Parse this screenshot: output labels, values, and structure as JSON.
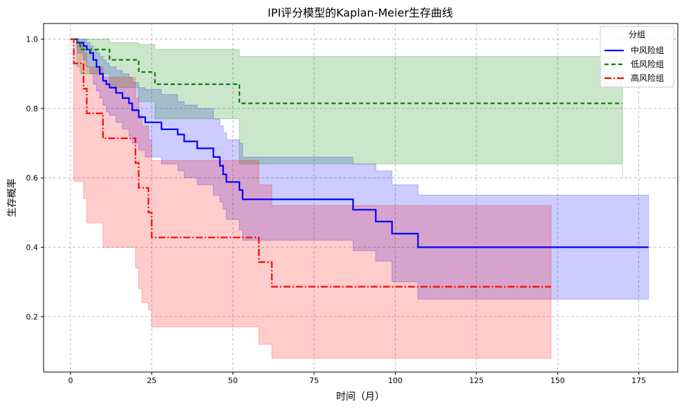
{
  "chart_data": {
    "type": "line",
    "title": "IPI评分模型的Kaplan-Meier生存曲线",
    "xlabel": "时间（月）",
    "ylabel": "生存概率",
    "xlim": [
      -8.3,
      187
    ],
    "ylim": [
      0.04,
      1.045
    ],
    "xticks": [
      0,
      25,
      50,
      75,
      100,
      125,
      150,
      175
    ],
    "yticks": [
      0.2,
      0.4,
      0.6,
      0.8,
      1.0
    ],
    "ytick_labels": [
      "0.2",
      "0.4",
      "0.6",
      "0.8",
      "1.0"
    ],
    "grid": true,
    "legend": {
      "title": "分组",
      "position": "top-right"
    },
    "series": [
      {
        "name": "中风险组",
        "color": "#0000ff",
        "dash": "solid",
        "x": [
          0,
          2,
          4,
          5,
          6,
          7,
          8,
          9,
          10,
          11,
          12,
          14,
          16,
          18,
          19,
          21,
          23,
          28,
          33,
          35,
          39,
          44,
          46,
          47,
          48,
          52,
          53,
          87,
          94,
          99,
          107,
          178
        ],
        "y": [
          1.0,
          0.99,
          0.98,
          0.97,
          0.96,
          0.94,
          0.92,
          0.9,
          0.88,
          0.87,
          0.86,
          0.845,
          0.83,
          0.815,
          0.795,
          0.775,
          0.76,
          0.74,
          0.725,
          0.705,
          0.685,
          0.66,
          0.635,
          0.61,
          0.588,
          0.565,
          0.538,
          0.508,
          0.474,
          0.439,
          0.4,
          0.4
        ],
        "ci_upper": [
          1.0,
          1.0,
          1.0,
          0.99,
          0.98,
          0.97,
          0.96,
          0.95,
          0.94,
          0.93,
          0.92,
          0.91,
          0.9,
          0.89,
          0.875,
          0.86,
          0.855,
          0.84,
          0.82,
          0.81,
          0.8,
          0.77,
          0.75,
          0.73,
          0.71,
          0.7,
          0.66,
          0.64,
          0.62,
          0.58,
          0.55,
          0.55
        ],
        "ci_lower": [
          1.0,
          0.96,
          0.94,
          0.92,
          0.9,
          0.87,
          0.85,
          0.83,
          0.81,
          0.79,
          0.78,
          0.76,
          0.74,
          0.72,
          0.7,
          0.68,
          0.66,
          0.64,
          0.62,
          0.6,
          0.58,
          0.55,
          0.53,
          0.51,
          0.48,
          0.45,
          0.42,
          0.39,
          0.36,
          0.3,
          0.25,
          0.25
        ]
      },
      {
        "name": "低风险组",
        "color": "#008000",
        "dash": "6,4",
        "x": [
          0,
          2,
          3,
          12,
          21,
          26,
          52,
          170
        ],
        "y": [
          1.0,
          0.985,
          0.97,
          0.94,
          0.905,
          0.87,
          0.815,
          0.815
        ],
        "ci_upper": [
          1.0,
          1.0,
          1.0,
          0.99,
          0.985,
          0.97,
          0.95,
          0.92
        ],
        "ci_lower": [
          1.0,
          0.92,
          0.9,
          0.86,
          0.82,
          0.77,
          0.64,
          0.6
        ]
      },
      {
        "name": "高风险组",
        "color": "#ff0000",
        "dash": "10,3,2,3",
        "x": [
          0,
          1,
          4,
          5,
          10,
          20,
          21,
          22,
          24,
          25,
          58,
          62,
          148
        ],
        "y": [
          1.0,
          0.93,
          0.857,
          0.786,
          0.714,
          0.643,
          0.571,
          0.571,
          0.5,
          0.428,
          0.357,
          0.286,
          0.286
        ],
        "ci_upper": [
          1.0,
          0.99,
          0.96,
          0.92,
          0.89,
          0.83,
          0.78,
          0.75,
          0.71,
          0.65,
          0.58,
          0.52,
          0.52
        ],
        "ci_lower": [
          1.0,
          0.59,
          0.54,
          0.47,
          0.4,
          0.34,
          0.28,
          0.24,
          0.22,
          0.17,
          0.12,
          0.08,
          0.08
        ]
      }
    ]
  }
}
